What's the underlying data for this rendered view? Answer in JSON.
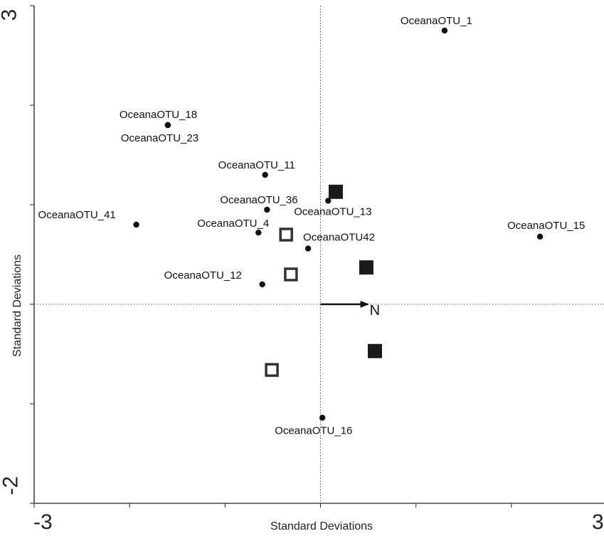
{
  "chart_data": {
    "type": "scatter",
    "title": "",
    "xlabel": "Standard Deviations",
    "ylabel": "Standard Deviations",
    "xlim": [
      -3,
      3
    ],
    "ylim": [
      -2,
      3
    ],
    "x_tick_labels": [
      "-3",
      "3"
    ],
    "y_tick_labels": [
      "3",
      "-2"
    ],
    "grid": false,
    "reference_lines": {
      "x": 0,
      "y": 0,
      "style": "dotted"
    },
    "otu_points": [
      {
        "label": "OceanaOTU_1",
        "x": 1.3,
        "y": 2.75
      },
      {
        "label": "OceanaOTU_18",
        "x": -1.6,
        "y": 1.8
      },
      {
        "label": "OceanaOTU_23",
        "x": -1.6,
        "y": 1.8
      },
      {
        "label": "OceanaOTU_11",
        "x": -0.58,
        "y": 1.3
      },
      {
        "label": "OceanaOTU_36",
        "x": -0.56,
        "y": 0.95
      },
      {
        "label": "OceanaOTU_13",
        "x": 0.08,
        "y": 1.04
      },
      {
        "label": "OceanaOTU_41",
        "x": -1.93,
        "y": 0.8
      },
      {
        "label": "OceanaOTU_4",
        "x": -0.65,
        "y": 0.72
      },
      {
        "label": "OceanaOTU42",
        "x": -0.13,
        "y": 0.56
      },
      {
        "label": "OceanaOTU_15",
        "x": 2.3,
        "y": 0.68
      },
      {
        "label": "OceanaOTU_12",
        "x": -0.61,
        "y": 0.2
      },
      {
        "label": "OceanaOTU_16",
        "x": 0.02,
        "y": -1.14
      }
    ],
    "open_squares": [
      {
        "x": -0.36,
        "y": 0.7
      },
      {
        "x": -0.31,
        "y": 0.3
      },
      {
        "x": -0.51,
        "y": -0.66
      }
    ],
    "filled_squares": [
      {
        "x": 0.16,
        "y": 1.13
      },
      {
        "x": 0.48,
        "y": 0.37
      },
      {
        "x": 0.57,
        "y": -0.47
      }
    ],
    "vector": {
      "label": "N",
      "x": 0.5,
      "y": 0.0
    }
  }
}
